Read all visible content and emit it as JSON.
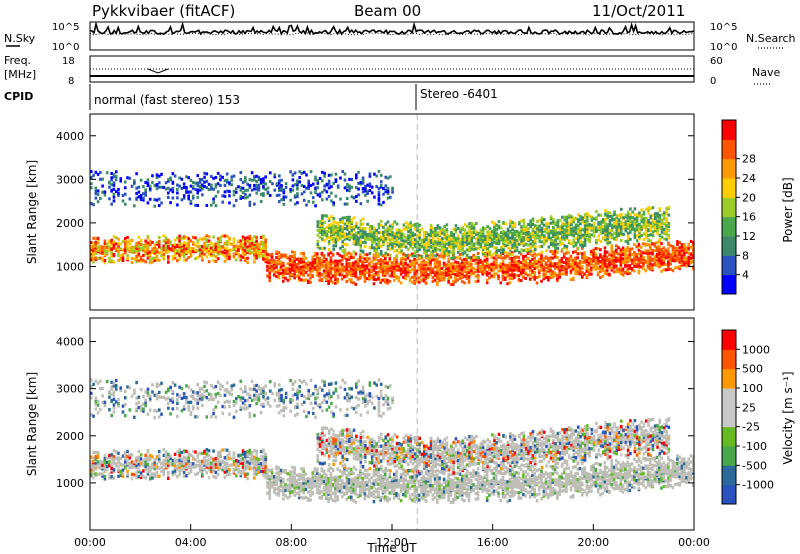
{
  "header": {
    "station": "Pykkvibaer (fitACF)",
    "beam": "Beam 00",
    "date": "11/Oct/2011"
  },
  "left_labels": {
    "nsky": "N.Sky",
    "freq": "Freq.",
    "freq_unit": "[MHz]",
    "cpid": "CPID",
    "nsky_top": "10^5",
    "nsky_bottom": "10^0",
    "freq_top": "18",
    "freq_bottom": "8"
  },
  "right_labels": {
    "nsearch": "N.Search",
    "nave": "Nave",
    "nsearch_top": "10^5",
    "nsearch_bottom": "10^0",
    "nave_top": "60",
    "nave_bottom": "0"
  },
  "cpid_labels": {
    "left": "normal (fast stereo) 153",
    "right": "Stereo -6401"
  },
  "colors": {
    "power_scale": [
      "#0000ff",
      "#2a52be",
      "#3a8a6a",
      "#4aa84a",
      "#9ccc2a",
      "#ffcc00",
      "#ff9900",
      "#ff5500",
      "#ff0000"
    ],
    "velocity_scale": [
      "#ff0000",
      "#ff5500",
      "#ff9900",
      "#c8c8c8",
      "#c8c8c8",
      "#66bb22",
      "#4aa84a",
      "#2a6a9a",
      "#2a52be"
    ],
    "ground_scatter": "#bebeb6"
  },
  "chart_data": [
    {
      "type": "heatmap",
      "panel": "power",
      "ylabel": "Slant Range [km]",
      "x_ticks": [
        "00:00",
        "04:00",
        "08:00",
        "12:00",
        "16:00",
        "20:00",
        "00:00"
      ],
      "y_ticks": [
        "1000",
        "2000",
        "3000",
        "4000"
      ],
      "ylim": [
        0,
        4500
      ],
      "colorbar": {
        "label": "Power [dB]",
        "ticks": [
          "4",
          "8",
          "12",
          "16",
          "20",
          "24",
          "28"
        ],
        "range": [
          0,
          30
        ]
      },
      "bands": [
        {
          "time_start": 0.0,
          "time_end": 7.0,
          "range_center": 1400,
          "range_width": 300,
          "level": "high"
        },
        {
          "time_start": 7.0,
          "time_end": 24.0,
          "range_center": 1000,
          "range_width": 350,
          "level": "very_high"
        },
        {
          "time_start": 9.0,
          "time_end": 23.0,
          "range_center": 1800,
          "range_width": 400,
          "level": "medium"
        },
        {
          "time_start": 0.0,
          "time_end": 12.0,
          "range_center": 2800,
          "range_width": 400,
          "level": "low"
        }
      ]
    },
    {
      "type": "heatmap",
      "panel": "velocity",
      "ylabel": "Slant Range [km]",
      "xlabel": "Time UT",
      "x_ticks": [
        "00:00",
        "04:00",
        "08:00",
        "12:00",
        "16:00",
        "20:00",
        "00:00"
      ],
      "y_ticks": [
        "1000",
        "2000",
        "3000",
        "4000"
      ],
      "ylim": [
        0,
        4500
      ],
      "colorbar": {
        "label": "Velocity [m s⁻¹]",
        "ticks": [
          "1000",
          "500",
          "100",
          "25",
          "-25",
          "-100",
          "-500",
          "-1000"
        ]
      }
    }
  ]
}
